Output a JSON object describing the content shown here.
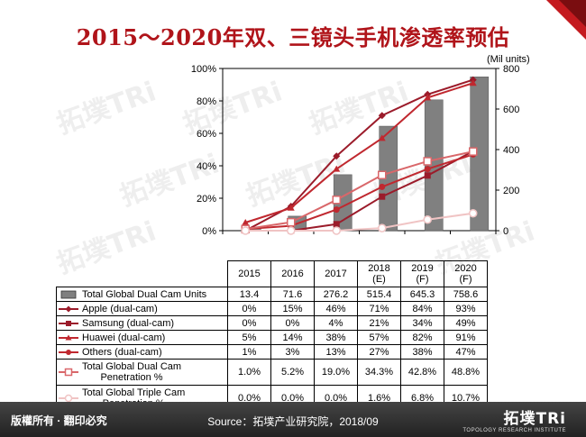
{
  "title": "2015～2020年双、三镜头手机渗透率预估",
  "unit_label": "(Mil units)",
  "chart_data": {
    "type": "bar",
    "categories": [
      "2015",
      "2016",
      "2017",
      "2018\n(E)",
      "2019\n(F)",
      "2020\n(F)"
    ],
    "left_axis": {
      "ticks": [
        "0%",
        "20%",
        "40%",
        "60%",
        "80%",
        "100%"
      ],
      "range": [
        0,
        100
      ]
    },
    "right_axis": {
      "ticks": [
        "0",
        "200",
        "400",
        "600",
        "800"
      ],
      "range": [
        0,
        800
      ]
    },
    "series": [
      {
        "name": "Total Global Dual Cam Units",
        "kind": "bar",
        "axis": "right",
        "values": [
          13.4,
          71.6,
          276.2,
          515.4,
          645.3,
          758.6
        ],
        "labels": [
          "13.4",
          "71.6",
          "276.2",
          "515.4",
          "645.3",
          "758.6"
        ],
        "color": "#808080",
        "marker": "bar"
      },
      {
        "name": "Apple (dual-cam)",
        "kind": "line",
        "axis": "left",
        "values": [
          0,
          15,
          46,
          71,
          84,
          93
        ],
        "labels": [
          "0%",
          "15%",
          "46%",
          "71%",
          "84%",
          "93%"
        ],
        "color": "#9b1b2a",
        "marker": "diamond"
      },
      {
        "name": "Samsung (dual-cam)",
        "kind": "line",
        "axis": "left",
        "values": [
          0,
          0,
          4,
          21,
          34,
          49
        ],
        "labels": [
          "0%",
          "0%",
          "4%",
          "21%",
          "34%",
          "49%"
        ],
        "color": "#9b1b2a",
        "marker": "square"
      },
      {
        "name": "Huawei (dual-cam)",
        "kind": "line",
        "axis": "left",
        "values": [
          5,
          14,
          38,
          57,
          82,
          91
        ],
        "labels": [
          "5%",
          "14%",
          "38%",
          "57%",
          "82%",
          "91%"
        ],
        "color": "#c0282f",
        "marker": "triangle"
      },
      {
        "name": "Others (dual-cam)",
        "kind": "line",
        "axis": "left",
        "values": [
          1,
          3,
          13,
          27,
          38,
          47
        ],
        "labels": [
          "1%",
          "3%",
          "13%",
          "27%",
          "38%",
          "47%"
        ],
        "color": "#c0282f",
        "marker": "circle"
      },
      {
        "name": "Total Global Dual Cam Penetration %",
        "kind": "line",
        "axis": "left",
        "values": [
          1.0,
          5.2,
          19.0,
          34.3,
          42.8,
          48.8
        ],
        "labels": [
          "1.0%",
          "5.2%",
          "19.0%",
          "34.3%",
          "42.8%",
          "48.8%"
        ],
        "color": "#d9676a",
        "marker": "open-square"
      },
      {
        "name": "Total Global Triple Cam Penetration %",
        "kind": "line",
        "axis": "left",
        "values": [
          0.0,
          0.0,
          0.0,
          1.6,
          6.8,
          10.7
        ],
        "labels": [
          "0.0%",
          "0.0%",
          "0.0%",
          "1.6%",
          "6.8%",
          "10.7%"
        ],
        "color": "#f0c4c4",
        "marker": "open-circle"
      }
    ]
  },
  "table_labels": [
    "Total Global Dual Cam Units",
    "Apple (dual-cam)",
    "Samsung (dual-cam)",
    "Huawei (dual-cam)",
    "Others (dual-cam)",
    [
      "Total Global Dual Cam",
      "Penetration %"
    ],
    [
      "Total Global Triple Cam",
      "Penetration %"
    ]
  ],
  "watermark_text": "拓墣TRi",
  "footer": {
    "rights": "版權所有 · 翻印必究",
    "source": "Source：拓墣产业研究院，2018/09",
    "logo_main": "拓墣TRi",
    "logo_sub": "TOPOLOGY RESEARCH INSTITUTE"
  }
}
